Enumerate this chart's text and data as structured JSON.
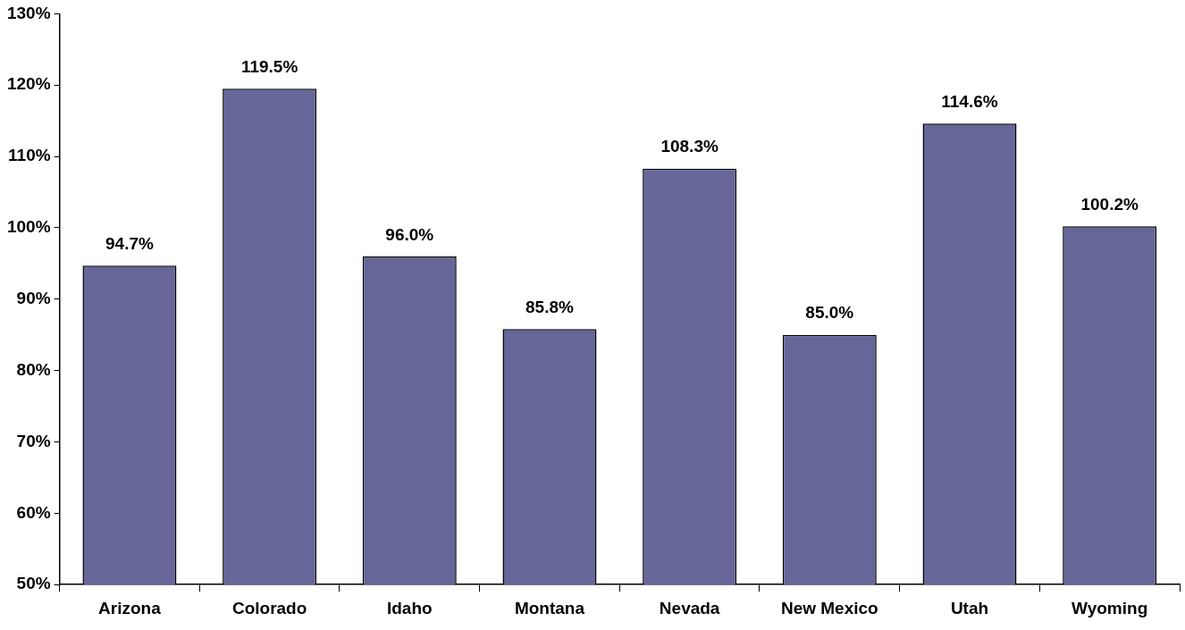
{
  "chart_data": {
    "type": "bar",
    "categories": [
      "Arizona",
      "Colorado",
      "Idaho",
      "Montana",
      "Nevada",
      "New Mexico",
      "Utah",
      "Wyoming"
    ],
    "values": [
      94.7,
      119.5,
      96.0,
      85.8,
      108.3,
      85.0,
      114.6,
      100.2
    ],
    "value_labels": [
      "94.7%",
      "119.5%",
      "96.0%",
      "85.8%",
      "108.3%",
      "85.0%",
      "114.6%",
      "100.2%"
    ],
    "color": "#666699",
    "ylim": [
      50,
      130
    ],
    "yticks": [
      {
        "value": 50,
        "label": "50%"
      },
      {
        "value": 60,
        "label": "60%"
      },
      {
        "value": 70,
        "label": "70%"
      },
      {
        "value": 80,
        "label": "80%"
      },
      {
        "value": 90,
        "label": "90%"
      },
      {
        "value": 100,
        "label": "100%"
      },
      {
        "value": 110,
        "label": "110%"
      },
      {
        "value": 120,
        "label": "120%"
      },
      {
        "value": 130,
        "label": "130%"
      }
    ]
  }
}
